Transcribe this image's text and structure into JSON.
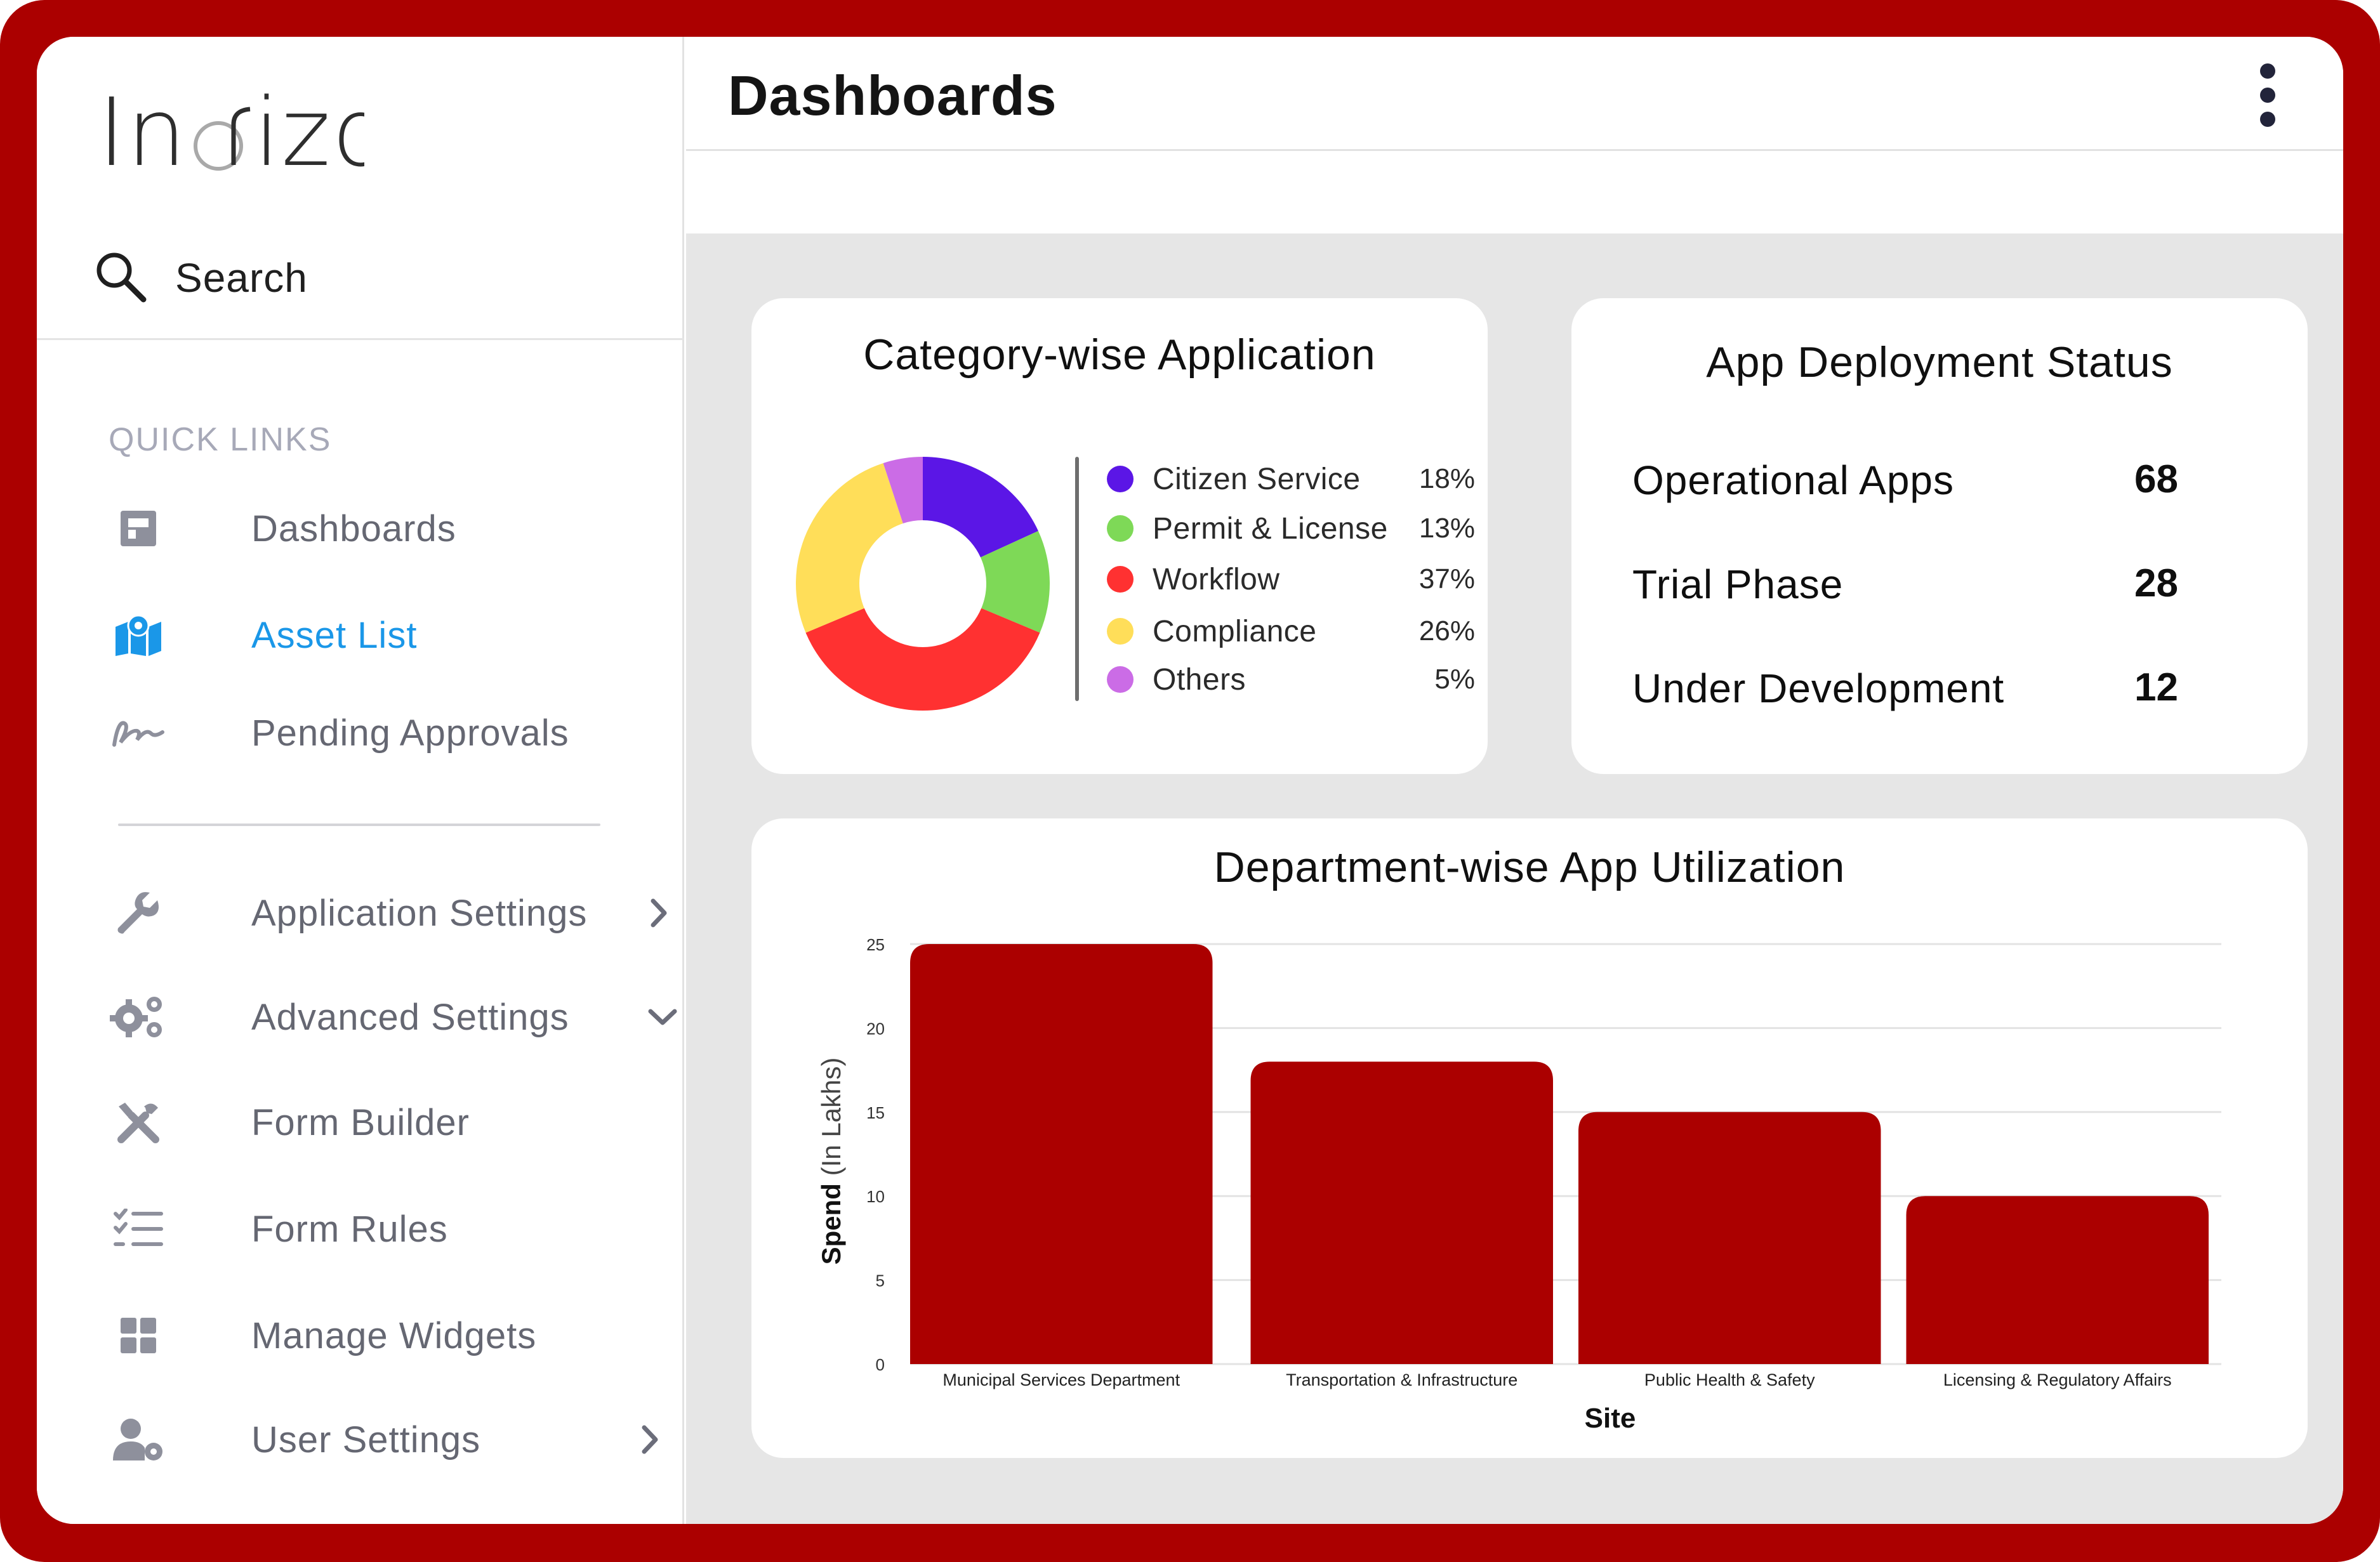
{
  "brand": {
    "logo_text": "Inofizo"
  },
  "colors": {
    "frame": "#ab0000",
    "accent_active": "#1a97e8",
    "bar": "#ab0000"
  },
  "sidebar": {
    "search_label": "Search",
    "section_label": "QUICK LINKS",
    "items": [
      {
        "label": "Dashboards",
        "icon": "dashboard-icon"
      },
      {
        "label": "Asset List",
        "icon": "map-pin-icon",
        "active": true
      },
      {
        "label": "Pending Approvals",
        "icon": "signature-icon"
      },
      {
        "label": "Application Settings",
        "icon": "wrench-icon",
        "chevron": "right"
      },
      {
        "label": "Advanced Settings",
        "icon": "gears-icon",
        "chevron": "down"
      },
      {
        "label": "Form Builder",
        "icon": "tools-icon"
      },
      {
        "label": "Form Rules",
        "icon": "checklist-icon"
      },
      {
        "label": "Manage Widgets",
        "icon": "grid-icon"
      },
      {
        "label": "User Settings",
        "icon": "user-gear-icon",
        "chevron": "right"
      }
    ]
  },
  "header": {
    "title": "Dashboards"
  },
  "category_card": {
    "title": "Category-wise Application",
    "legend": [
      {
        "name": "Citizen Service",
        "pct": "18%",
        "value": 18,
        "color": "#5b16e6"
      },
      {
        "name": "Permit & License",
        "pct": "13%",
        "value": 13,
        "color": "#7ed957"
      },
      {
        "name": "Workflow",
        "pct": "37%",
        "value": 37,
        "color": "#ff3131"
      },
      {
        "name": "Compliance",
        "pct": "26%",
        "value": 26,
        "color": "#ffde59"
      },
      {
        "name": "Others",
        "pct": "5%",
        "value": 5,
        "color": "#cb6ce6"
      }
    ]
  },
  "deployment_card": {
    "title": "App Deployment Status",
    "rows": [
      {
        "label": "Operational Apps",
        "value": "68"
      },
      {
        "label": "Trial Phase",
        "value": "28"
      },
      {
        "label": "Under Development",
        "value": "12"
      }
    ]
  },
  "chart_data": {
    "type": "bar",
    "title": "Department-wise App Utilization",
    "xlabel": "Site",
    "ylabel_bold": "Spend",
    "ylabel_light": "(In Lakhs)",
    "categories": [
      "Municipal Services Department",
      "Transportation & Infrastructure",
      "Public Health & Safety",
      "Licensing & Regulatory Affairs"
    ],
    "values": [
      25,
      18,
      15,
      10
    ],
    "ylim": [
      0,
      25
    ],
    "yticks": [
      "0",
      "5",
      "10",
      "15",
      "20",
      "25"
    ],
    "grid": true,
    "bar_color": "#ab0000"
  }
}
